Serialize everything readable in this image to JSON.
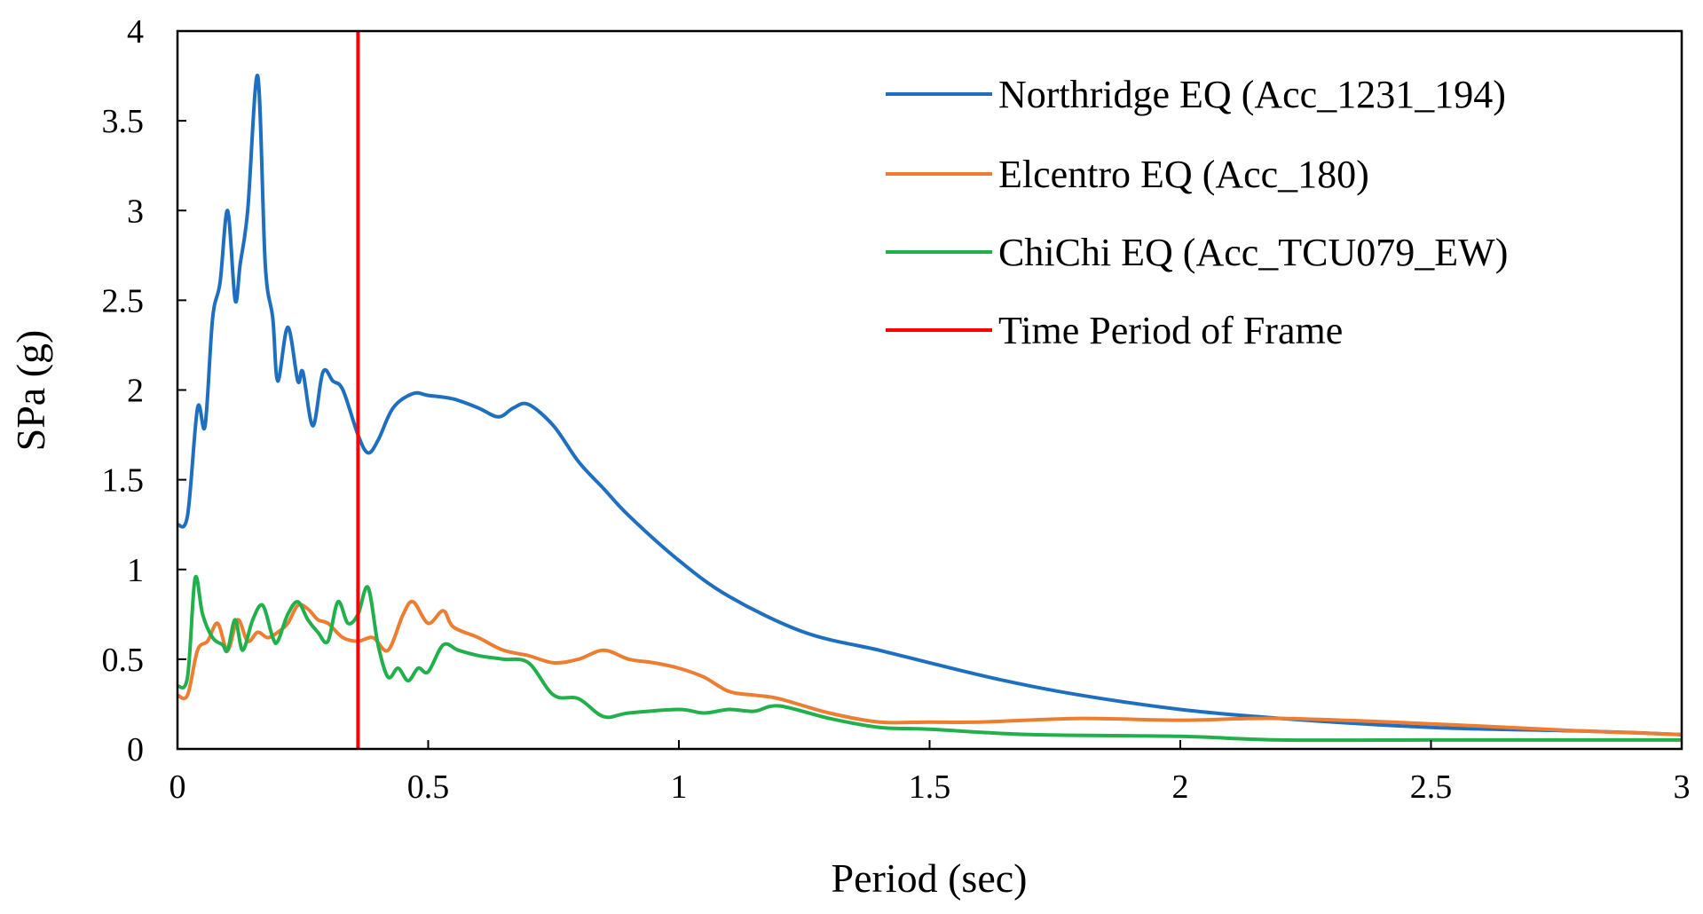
{
  "chart_data": {
    "type": "line",
    "title": "",
    "xlabel": "Period (sec)",
    "ylabel": "SPa (g)",
    "xlim": [
      0,
      3
    ],
    "ylim": [
      0,
      4
    ],
    "xticks": [
      0,
      0.5,
      1,
      1.5,
      2,
      2.5,
      3
    ],
    "xtick_labels": [
      "0",
      "0.5",
      "1",
      "1.5",
      "2",
      "2.5",
      "3"
    ],
    "yticks": [
      0,
      0.5,
      1,
      1.5,
      2,
      2.5,
      3,
      3.5,
      4
    ],
    "ytick_labels": [
      "0",
      "0.5",
      "1",
      "1.5",
      "2",
      "2.5",
      "3",
      "3.5",
      "4"
    ],
    "grid": false,
    "legend_position": "top-right",
    "series": [
      {
        "name": "Northridge EQ (Acc_1231_194)",
        "color": "#1f6fc0",
        "x": [
          0.0,
          0.02,
          0.04,
          0.055,
          0.07,
          0.085,
          0.1,
          0.115,
          0.125,
          0.14,
          0.16,
          0.175,
          0.19,
          0.2,
          0.22,
          0.24,
          0.25,
          0.27,
          0.29,
          0.31,
          0.33,
          0.36,
          0.38,
          0.4,
          0.43,
          0.47,
          0.5,
          0.55,
          0.6,
          0.64,
          0.67,
          0.7,
          0.75,
          0.8,
          0.85,
          0.9,
          1.0,
          1.1,
          1.25,
          1.4,
          1.5,
          1.65,
          1.8,
          2.0,
          2.2,
          2.5,
          2.8,
          3.0
        ],
        "y": [
          1.25,
          1.3,
          1.9,
          1.8,
          2.4,
          2.6,
          3.0,
          2.5,
          2.7,
          3.0,
          3.75,
          2.7,
          2.4,
          2.05,
          2.35,
          2.05,
          2.1,
          1.8,
          2.1,
          2.05,
          2.0,
          1.75,
          1.65,
          1.72,
          1.9,
          1.98,
          1.97,
          1.95,
          1.9,
          1.85,
          1.9,
          1.92,
          1.8,
          1.6,
          1.45,
          1.3,
          1.05,
          0.85,
          0.65,
          0.55,
          0.48,
          0.38,
          0.3,
          0.22,
          0.17,
          0.12,
          0.1,
          0.08
        ]
      },
      {
        "name": "Elcentro EQ (Acc_180)",
        "color": "#ed7d31",
        "x": [
          0.0,
          0.02,
          0.04,
          0.06,
          0.08,
          0.1,
          0.12,
          0.14,
          0.16,
          0.18,
          0.2,
          0.22,
          0.24,
          0.26,
          0.28,
          0.3,
          0.33,
          0.36,
          0.39,
          0.42,
          0.45,
          0.47,
          0.5,
          0.53,
          0.55,
          0.6,
          0.65,
          0.7,
          0.75,
          0.8,
          0.85,
          0.9,
          0.95,
          1.0,
          1.05,
          1.1,
          1.15,
          1.2,
          1.3,
          1.4,
          1.5,
          1.6,
          1.8,
          2.0,
          2.2,
          2.5,
          2.8,
          3.0
        ],
        "y": [
          0.3,
          0.3,
          0.55,
          0.6,
          0.7,
          0.55,
          0.72,
          0.6,
          0.65,
          0.62,
          0.65,
          0.7,
          0.8,
          0.78,
          0.72,
          0.7,
          0.62,
          0.6,
          0.62,
          0.55,
          0.75,
          0.82,
          0.7,
          0.77,
          0.68,
          0.62,
          0.55,
          0.52,
          0.48,
          0.5,
          0.55,
          0.5,
          0.48,
          0.45,
          0.4,
          0.32,
          0.3,
          0.28,
          0.2,
          0.15,
          0.15,
          0.15,
          0.17,
          0.16,
          0.17,
          0.14,
          0.1,
          0.08
        ]
      },
      {
        "name": "ChiChi EQ (Acc_TCU079_EW)",
        "color": "#21b04b",
        "x": [
          0.0,
          0.02,
          0.035,
          0.05,
          0.07,
          0.09,
          0.1,
          0.115,
          0.13,
          0.15,
          0.17,
          0.19,
          0.2,
          0.22,
          0.24,
          0.26,
          0.28,
          0.3,
          0.32,
          0.34,
          0.36,
          0.38,
          0.4,
          0.42,
          0.44,
          0.46,
          0.48,
          0.5,
          0.53,
          0.56,
          0.6,
          0.65,
          0.7,
          0.75,
          0.8,
          0.85,
          0.9,
          1.0,
          1.05,
          1.1,
          1.15,
          1.2,
          1.3,
          1.4,
          1.5,
          1.7,
          2.0,
          2.2,
          2.5,
          2.8,
          3.0
        ],
        "y": [
          0.35,
          0.4,
          0.95,
          0.75,
          0.62,
          0.58,
          0.55,
          0.72,
          0.55,
          0.72,
          0.8,
          0.62,
          0.6,
          0.75,
          0.82,
          0.72,
          0.65,
          0.6,
          0.82,
          0.7,
          0.75,
          0.9,
          0.58,
          0.4,
          0.45,
          0.38,
          0.45,
          0.43,
          0.58,
          0.55,
          0.52,
          0.5,
          0.48,
          0.3,
          0.28,
          0.18,
          0.2,
          0.22,
          0.2,
          0.22,
          0.21,
          0.24,
          0.17,
          0.12,
          0.11,
          0.08,
          0.07,
          0.05,
          0.05,
          0.05,
          0.05
        ]
      }
    ],
    "reference_line": {
      "name": "Time Period of Frame",
      "color": "#ff0000",
      "x": 0.36
    }
  }
}
